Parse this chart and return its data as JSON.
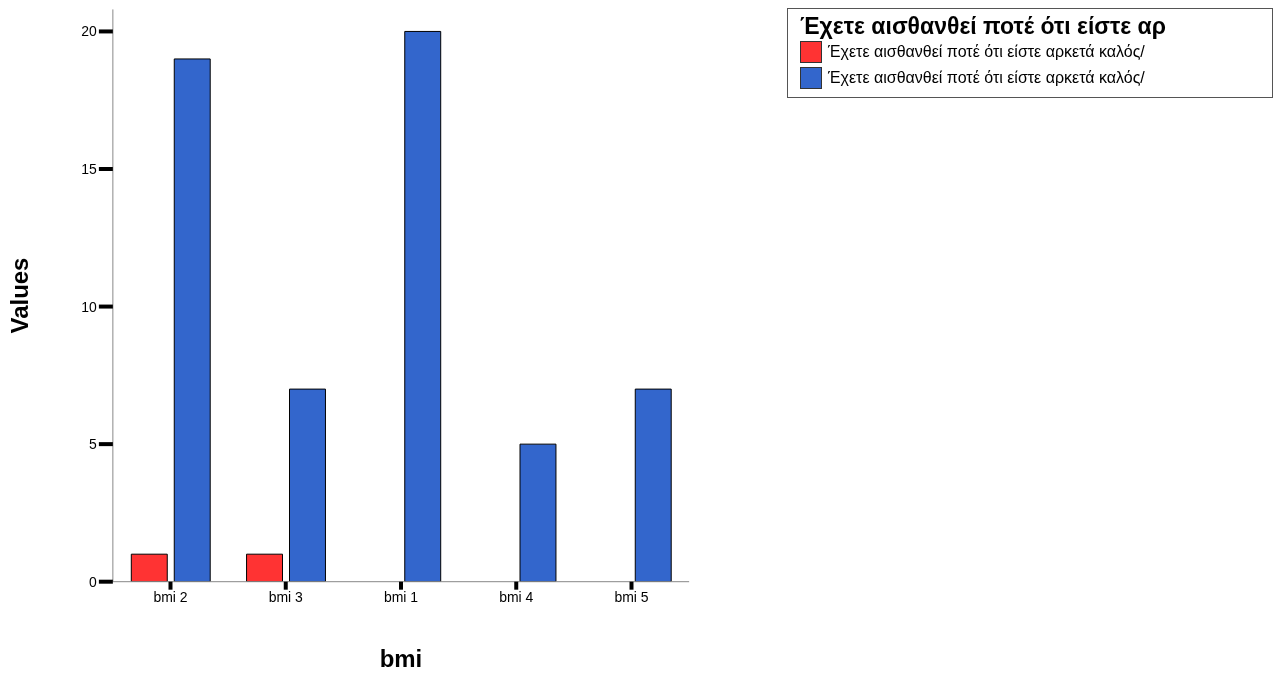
{
  "chart_data": {
    "type": "bar",
    "xlabel": "bmi",
    "ylabel": "Values",
    "legend_title": "Έχετε αισθανθεί ποτέ ότι είστε αρ",
    "categories": [
      "bmi 2",
      "bmi 3",
      "bmi 1",
      "bmi 4",
      "bmi 5"
    ],
    "series": [
      {
        "name": "Έχετε αισθανθεί ποτέ ότι είστε αρκετά καλός/",
        "color": "#ff3333",
        "values": [
          1,
          1,
          null,
          null,
          null
        ]
      },
      {
        "name": "Έχετε αισθανθεί ποτέ ότι είστε αρκετά καλός/",
        "color": "#3366cc",
        "values": [
          19,
          7,
          20,
          5,
          7
        ]
      }
    ],
    "ylim": [
      0,
      20.8
    ],
    "yticks": [
      0,
      5,
      10,
      15,
      20
    ],
    "grid": false,
    "legend": "top right"
  }
}
